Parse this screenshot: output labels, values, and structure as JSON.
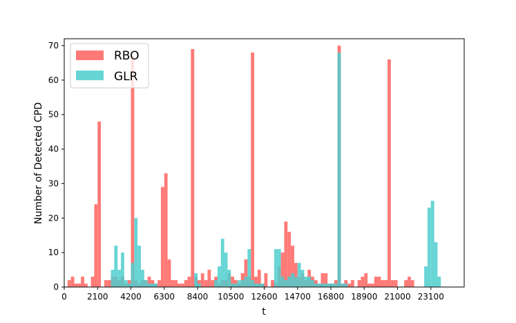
{
  "chart_data": {
    "type": "bar",
    "xlabel": "t",
    "ylabel": "Number of Detected CPD",
    "xlim": [
      0,
      25200
    ],
    "ylim": [
      0,
      72
    ],
    "bin_width": 210,
    "x_ticks": [
      0,
      2100,
      4200,
      6300,
      8400,
      10500,
      12600,
      14700,
      16800,
      18900,
      21000,
      23100
    ],
    "y_ticks": [
      0,
      10,
      20,
      30,
      40,
      50,
      60,
      70
    ],
    "legend_position": "upper-left",
    "grid": false,
    "series": [
      {
        "name": "RBO",
        "color": "#ff7370",
        "opacity": 0.95,
        "bins": [
          {
            "x": 210,
            "value": 2
          },
          {
            "x": 420,
            "value": 3
          },
          {
            "x": 630,
            "value": 1
          },
          {
            "x": 840,
            "value": 1
          },
          {
            "x": 1050,
            "value": 3
          },
          {
            "x": 1260,
            "value": 1
          },
          {
            "x": 1680,
            "value": 3
          },
          {
            "x": 1890,
            "value": 24
          },
          {
            "x": 2100,
            "value": 48
          },
          {
            "x": 2520,
            "value": 2
          },
          {
            "x": 2730,
            "value": 2
          },
          {
            "x": 2940,
            "value": 3
          },
          {
            "x": 3150,
            "value": 3
          },
          {
            "x": 3360,
            "value": 2
          },
          {
            "x": 3570,
            "value": 3
          },
          {
            "x": 3780,
            "value": 1
          },
          {
            "x": 3990,
            "value": 2
          },
          {
            "x": 4200,
            "value": 67
          },
          {
            "x": 4410,
            "value": 2
          },
          {
            "x": 4620,
            "value": 1
          },
          {
            "x": 4830,
            "value": 2
          },
          {
            "x": 5040,
            "value": 2
          },
          {
            "x": 5250,
            "value": 3
          },
          {
            "x": 5460,
            "value": 2
          },
          {
            "x": 5670,
            "value": 1
          },
          {
            "x": 5880,
            "value": 2
          },
          {
            "x": 6090,
            "value": 29
          },
          {
            "x": 6300,
            "value": 33
          },
          {
            "x": 6510,
            "value": 8
          },
          {
            "x": 6720,
            "value": 2
          },
          {
            "x": 6930,
            "value": 2
          },
          {
            "x": 7140,
            "value": 1
          },
          {
            "x": 7350,
            "value": 1
          },
          {
            "x": 7560,
            "value": 2
          },
          {
            "x": 7770,
            "value": 3
          },
          {
            "x": 7980,
            "value": 69
          },
          {
            "x": 8190,
            "value": 3
          },
          {
            "x": 8400,
            "value": 2
          },
          {
            "x": 8610,
            "value": 4
          },
          {
            "x": 8820,
            "value": 2
          },
          {
            "x": 9030,
            "value": 5
          },
          {
            "x": 9240,
            "value": 2
          },
          {
            "x": 9450,
            "value": 3
          },
          {
            "x": 9660,
            "value": 1
          },
          {
            "x": 9870,
            "value": 2
          },
          {
            "x": 10080,
            "value": 2
          },
          {
            "x": 10290,
            "value": 4
          },
          {
            "x": 10500,
            "value": 3
          },
          {
            "x": 10710,
            "value": 2
          },
          {
            "x": 10920,
            "value": 1
          },
          {
            "x": 11130,
            "value": 4
          },
          {
            "x": 11340,
            "value": 8
          },
          {
            "x": 11550,
            "value": 3
          },
          {
            "x": 11760,
            "value": 68
          },
          {
            "x": 11970,
            "value": 3
          },
          {
            "x": 12180,
            "value": 5
          },
          {
            "x": 12390,
            "value": 1
          },
          {
            "x": 12600,
            "value": 4
          },
          {
            "x": 13020,
            "value": 2
          },
          {
            "x": 13230,
            "value": 1
          },
          {
            "x": 13440,
            "value": 6
          },
          {
            "x": 13650,
            "value": 10
          },
          {
            "x": 13860,
            "value": 19
          },
          {
            "x": 14070,
            "value": 16
          },
          {
            "x": 14280,
            "value": 12
          },
          {
            "x": 14490,
            "value": 7
          },
          {
            "x": 14700,
            "value": 3
          },
          {
            "x": 14910,
            "value": 4
          },
          {
            "x": 15120,
            "value": 2
          },
          {
            "x": 15330,
            "value": 5
          },
          {
            "x": 15540,
            "value": 3
          },
          {
            "x": 15750,
            "value": 2
          },
          {
            "x": 15960,
            "value": 1
          },
          {
            "x": 16170,
            "value": 4
          },
          {
            "x": 16380,
            "value": 4
          },
          {
            "x": 16590,
            "value": 1
          },
          {
            "x": 16800,
            "value": 1
          },
          {
            "x": 17010,
            "value": 2
          },
          {
            "x": 17220,
            "value": 70
          },
          {
            "x": 17430,
            "value": 1
          },
          {
            "x": 17640,
            "value": 2
          },
          {
            "x": 17850,
            "value": 1
          },
          {
            "x": 18060,
            "value": 2
          },
          {
            "x": 18480,
            "value": 2
          },
          {
            "x": 18690,
            "value": 3
          },
          {
            "x": 18900,
            "value": 4
          },
          {
            "x": 19110,
            "value": 1
          },
          {
            "x": 19320,
            "value": 1
          },
          {
            "x": 19530,
            "value": 3
          },
          {
            "x": 19740,
            "value": 3
          },
          {
            "x": 19950,
            "value": 2
          },
          {
            "x": 20160,
            "value": 2
          },
          {
            "x": 20370,
            "value": 66
          },
          {
            "x": 20580,
            "value": 2
          },
          {
            "x": 20790,
            "value": 2
          },
          {
            "x": 21420,
            "value": 2
          },
          {
            "x": 21630,
            "value": 3
          },
          {
            "x": 21840,
            "value": 2
          }
        ]
      },
      {
        "name": "GLR",
        "color": "#4ecece",
        "opacity": 0.85,
        "bins": [
          {
            "x": 2940,
            "value": 5
          },
          {
            "x": 3150,
            "value": 12
          },
          {
            "x": 3360,
            "value": 5
          },
          {
            "x": 3570,
            "value": 10
          },
          {
            "x": 3780,
            "value": 2
          },
          {
            "x": 3990,
            "value": 1
          },
          {
            "x": 4200,
            "value": 7
          },
          {
            "x": 4410,
            "value": 20
          },
          {
            "x": 4620,
            "value": 12
          },
          {
            "x": 4830,
            "value": 5
          },
          {
            "x": 5040,
            "value": 2
          },
          {
            "x": 5250,
            "value": 1
          },
          {
            "x": 5460,
            "value": 1
          },
          {
            "x": 5670,
            "value": 1
          },
          {
            "x": 8190,
            "value": 4
          },
          {
            "x": 8400,
            "value": 1
          },
          {
            "x": 9450,
            "value": 2
          },
          {
            "x": 9660,
            "value": 6
          },
          {
            "x": 9870,
            "value": 14
          },
          {
            "x": 10080,
            "value": 10
          },
          {
            "x": 10290,
            "value": 5
          },
          {
            "x": 10500,
            "value": 1
          },
          {
            "x": 10710,
            "value": 1
          },
          {
            "x": 10920,
            "value": 2
          },
          {
            "x": 11130,
            "value": 2
          },
          {
            "x": 11340,
            "value": 3
          },
          {
            "x": 11550,
            "value": 11
          },
          {
            "x": 11760,
            "value": 2
          },
          {
            "x": 11970,
            "value": 1
          },
          {
            "x": 12180,
            "value": 1
          },
          {
            "x": 12390,
            "value": 1
          },
          {
            "x": 13230,
            "value": 11
          },
          {
            "x": 13440,
            "value": 11
          },
          {
            "x": 13650,
            "value": 3
          },
          {
            "x": 13860,
            "value": 2
          },
          {
            "x": 14070,
            "value": 3
          },
          {
            "x": 14280,
            "value": 4
          },
          {
            "x": 14490,
            "value": 3
          },
          {
            "x": 14700,
            "value": 7
          },
          {
            "x": 14910,
            "value": 5
          },
          {
            "x": 15120,
            "value": 3
          },
          {
            "x": 15330,
            "value": 3
          },
          {
            "x": 15540,
            "value": 2
          },
          {
            "x": 15750,
            "value": 1
          },
          {
            "x": 15960,
            "value": 1
          },
          {
            "x": 16170,
            "value": 1
          },
          {
            "x": 16380,
            "value": 1
          },
          {
            "x": 16590,
            "value": 1
          },
          {
            "x": 16800,
            "value": 1
          },
          {
            "x": 17010,
            "value": 1
          },
          {
            "x": 17220,
            "value": 68
          },
          {
            "x": 17430,
            "value": 1
          },
          {
            "x": 17640,
            "value": 1
          },
          {
            "x": 22680,
            "value": 6
          },
          {
            "x": 22890,
            "value": 23
          },
          {
            "x": 23100,
            "value": 25
          },
          {
            "x": 23310,
            "value": 13
          },
          {
            "x": 23520,
            "value": 3
          }
        ]
      }
    ]
  }
}
